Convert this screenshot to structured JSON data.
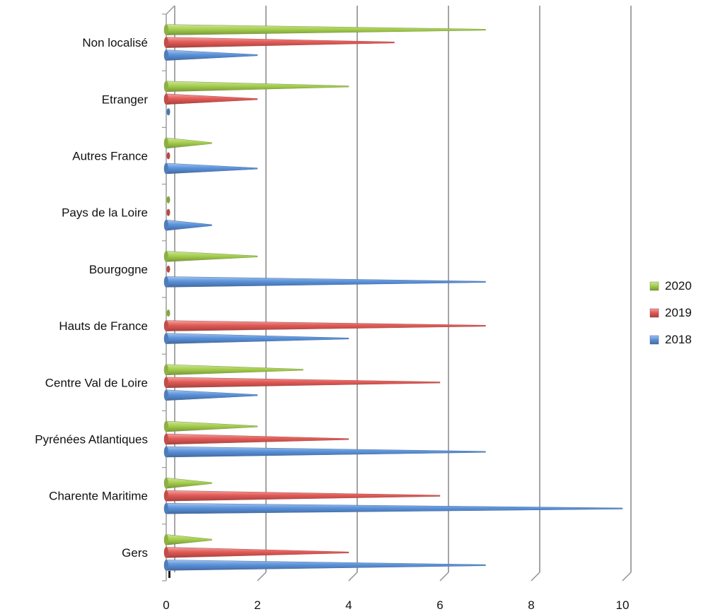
{
  "chart_data": {
    "type": "bar",
    "title": "",
    "xlabel": "",
    "ylabel": "",
    "xlim": [
      0,
      10
    ],
    "x_ticks": [
      "0",
      "2",
      "4",
      "6",
      "8",
      "10"
    ],
    "grid": true,
    "legend_position": "right",
    "categories": [
      "Non localisé",
      "Etranger",
      "Autres France",
      "Pays de la Loire",
      "Bourgogne",
      "Hauts de France",
      "Centre Val de Loire",
      "Pyrénées Atlantiques",
      "Charente Maritime",
      "Gers"
    ],
    "series": [
      {
        "name": "2020",
        "color": "#a6cf4e",
        "values": [
          7,
          4,
          1,
          0,
          2,
          0,
          3,
          2,
          1,
          1
        ]
      },
      {
        "name": "2019",
        "color": "#e45a56",
        "values": [
          5,
          2,
          0,
          0,
          0,
          7,
          6,
          4,
          6,
          4
        ]
      },
      {
        "name": "2018",
        "color": "#5b93dc",
        "values": [
          2,
          0,
          2,
          1,
          7,
          4,
          2,
          7,
          10,
          7
        ]
      }
    ]
  }
}
